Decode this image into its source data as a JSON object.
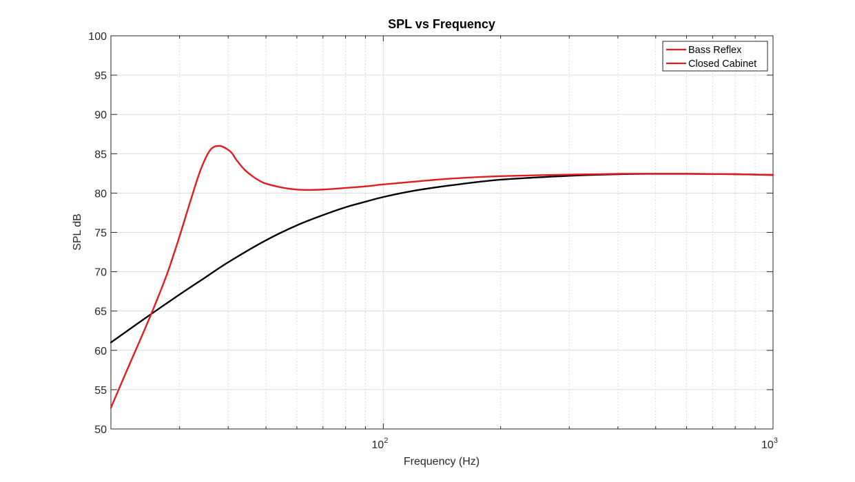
{
  "chart_data": {
    "type": "line",
    "title": "SPL vs Frequency",
    "xlabel": "Frequency (Hz)",
    "ylabel": "SPL dB",
    "xscale": "log",
    "xlim": [
      20,
      1000
    ],
    "ylim": [
      50,
      100
    ],
    "x_ticks": [
      100,
      1000
    ],
    "x_tick_labels": [
      {
        "base": "10",
        "exp": "2"
      },
      {
        "base": "10",
        "exp": "3"
      }
    ],
    "y_ticks": [
      50,
      55,
      60,
      65,
      70,
      75,
      80,
      85,
      90,
      95,
      100
    ],
    "y_tick_labels": [
      "50",
      "55",
      "60",
      "65",
      "70",
      "75",
      "80",
      "85",
      "90",
      "95",
      "100"
    ],
    "grid": true,
    "legend_position": "top-right",
    "series": [
      {
        "name": "Bass Reflex",
        "color": "#e41a1c",
        "x": [
          20,
          22,
          24,
          26,
          28,
          30,
          32,
          34,
          36,
          38,
          40,
          41,
          42,
          44,
          46,
          48,
          50,
          55,
          60,
          65,
          70,
          80,
          90,
          100,
          120,
          150,
          200,
          300,
          400,
          500,
          600,
          700,
          800,
          1000
        ],
        "y": [
          52.7,
          57.5,
          61.8,
          65.9,
          70.0,
          74.5,
          79.0,
          83.0,
          85.5,
          86.0,
          85.5,
          85.0,
          84.2,
          83.0,
          82.2,
          81.6,
          81.2,
          80.7,
          80.45,
          80.4,
          80.45,
          80.65,
          80.85,
          81.1,
          81.45,
          81.85,
          82.15,
          82.35,
          82.45,
          82.45,
          82.45,
          82.42,
          82.4,
          82.3
        ]
      },
      {
        "name": "Closed Cabinet",
        "color": "#000000",
        "x": [
          20,
          25,
          30,
          35,
          40,
          50,
          60,
          70,
          80,
          90,
          100,
          120,
          150,
          200,
          300,
          400,
          500,
          600,
          700,
          800,
          1000
        ],
        "y": [
          61.0,
          64.4,
          67.1,
          69.3,
          71.2,
          74.0,
          75.9,
          77.2,
          78.2,
          78.9,
          79.5,
          80.3,
          81.0,
          81.7,
          82.2,
          82.4,
          82.45,
          82.45,
          82.42,
          82.4,
          82.3
        ]
      }
    ]
  }
}
